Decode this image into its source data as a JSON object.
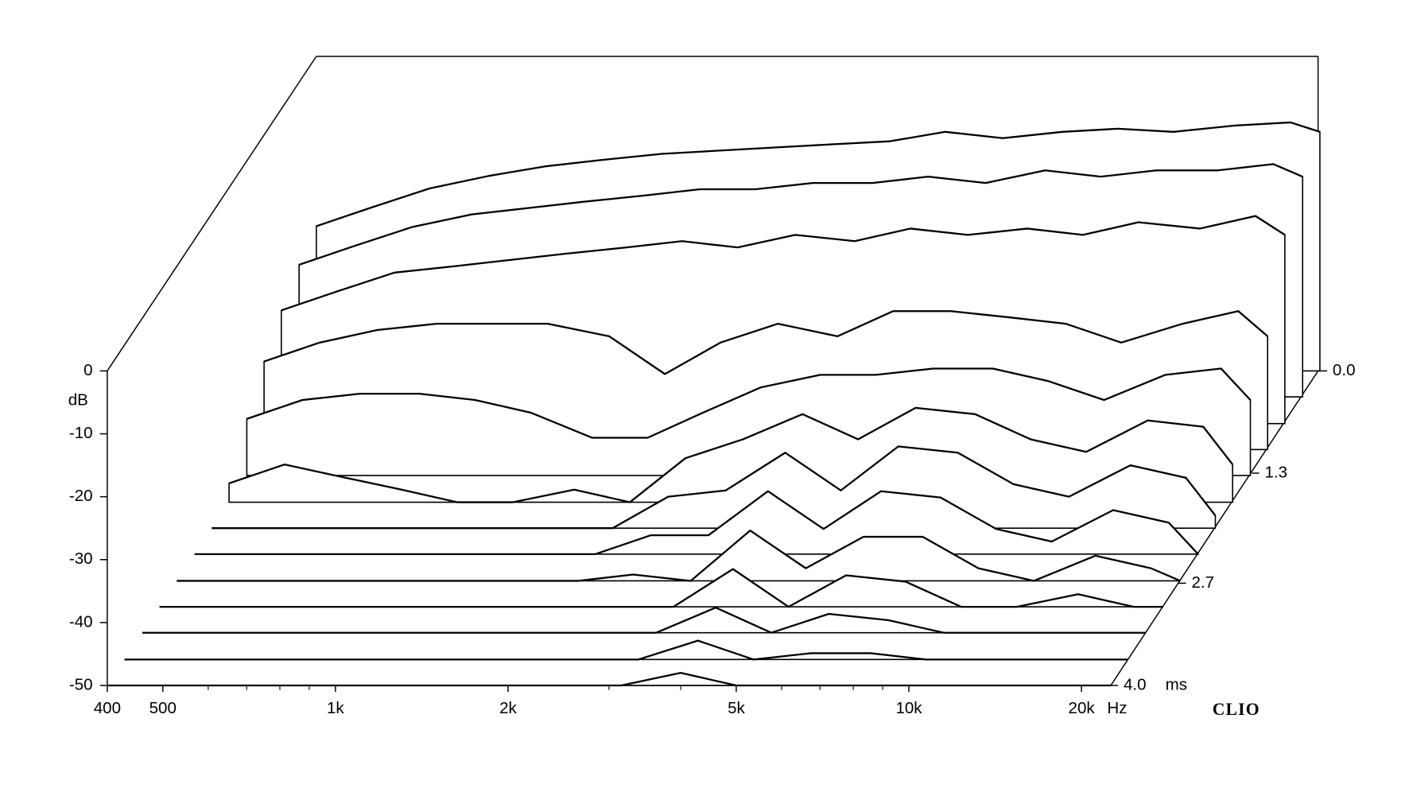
{
  "chart_data": {
    "type": "waterfall",
    "y_label": "dB",
    "x_unit": "Hz",
    "z_unit": "ms",
    "brand": "CLIO",
    "xlim": [
      400,
      22500
    ],
    "ylim": [
      -50,
      0
    ],
    "zlim": [
      0,
      4
    ],
    "log_x": true,
    "xticks": [
      400,
      500,
      {
        "value": 1000,
        "label": "1k"
      },
      {
        "value": 2000,
        "label": "2k"
      },
      {
        "value": 5000,
        "label": "5k"
      },
      {
        "value": 10000,
        "label": "10k"
      },
      {
        "value": 20000,
        "label": "20k"
      }
    ],
    "xminorticks": [
      600,
      700,
      800,
      900,
      3000,
      4000,
      6000,
      7000,
      8000,
      9000
    ],
    "yticks": [
      0,
      -10,
      -20,
      -30,
      -40,
      -50
    ],
    "zticks": [
      {
        "value": 0,
        "label": "0.0"
      },
      1.3,
      2.7,
      {
        "value": 4,
        "label": "4.0"
      }
    ],
    "color": "#000000",
    "x": [
      400,
      500,
      630,
      800,
      1000,
      1250,
      1600,
      2000,
      2500,
      3150,
      4000,
      5000,
      6300,
      8000,
      10000,
      12500,
      16000,
      20000,
      22500
    ],
    "z": [
      0,
      0.33,
      0.67,
      1.0,
      1.33,
      1.67,
      2.0,
      2.33,
      2.67,
      3.0,
      3.33,
      3.67,
      4.0
    ],
    "series": [
      {
        "values": [
          -27,
          -24,
          -21,
          -19,
          -17.5,
          -16.5,
          -15.5,
          -15,
          -14.5,
          -14,
          -13.5,
          -12,
          -13,
          -12,
          -11.5,
          -12,
          -11,
          -10.5,
          -12
        ]
      },
      {
        "values": [
          -29,
          -26,
          -23,
          -21,
          -20,
          -19,
          -18,
          -17,
          -17,
          -16,
          -16,
          -15,
          -16,
          -14,
          -15,
          -14,
          -14,
          -13,
          -15
        ]
      },
      {
        "values": [
          -32,
          -29,
          -26,
          -25,
          -24,
          -23,
          -22,
          -21,
          -22,
          -20,
          -21,
          -19,
          -20,
          -19,
          -20,
          -18,
          -19,
          -17,
          -20
        ]
      },
      {
        "values": [
          -36,
          -33,
          -31,
          -30,
          -30,
          -30,
          -32,
          -38,
          -33,
          -30,
          -32,
          -28,
          -28,
          -29,
          -30,
          -33,
          -30,
          -28,
          -32
        ]
      },
      {
        "values": [
          -41,
          -38,
          -37,
          -37,
          -38,
          -40,
          -44,
          -44,
          -40,
          -36,
          -34,
          -34,
          -33,
          -33,
          -35,
          -38,
          -34,
          -33,
          -38
        ]
      },
      {
        "values": [
          -47,
          -44,
          -46,
          -48,
          -50,
          -50,
          -48,
          -50,
          -43,
          -40,
          -36,
          -40,
          -35,
          -36,
          -40,
          -42,
          -37,
          -38,
          -44
        ]
      },
      {
        "values": [
          -50,
          -50,
          -50,
          -50,
          -50,
          -50,
          -50,
          -50,
          -45,
          -44,
          -38,
          -44,
          -37,
          -38,
          -43,
          -45,
          -40,
          -42,
          -48
        ]
      },
      {
        "values": [
          -50,
          -50,
          -50,
          -50,
          -50,
          -50,
          -50,
          -50,
          -47,
          -47,
          -40,
          -46,
          -40,
          -41,
          -46,
          -48,
          -43,
          -45,
          -50
        ]
      },
      {
        "values": [
          -50,
          -50,
          -50,
          -50,
          -50,
          -50,
          -50,
          -50,
          -49,
          -50,
          -42,
          -48,
          -43,
          -43,
          -48,
          -50,
          -46,
          -48,
          -50
        ]
      },
      {
        "values": [
          -50,
          -50,
          -50,
          -50,
          -50,
          -50,
          -50,
          -50,
          -50,
          -50,
          -44,
          -50,
          -45,
          -46,
          -50,
          -50,
          -48,
          -50,
          -50
        ]
      },
      {
        "values": [
          -50,
          -50,
          -50,
          -50,
          -50,
          -50,
          -50,
          -50,
          -50,
          -50,
          -46,
          -50,
          -47,
          -48,
          -50,
          -50,
          -50,
          -50,
          -50
        ]
      },
      {
        "values": [
          -50,
          -50,
          -50,
          -50,
          -50,
          -50,
          -50,
          -50,
          -50,
          -50,
          -47,
          -50,
          -49,
          -49,
          -50,
          -50,
          -50,
          -50,
          -50
        ]
      },
      {
        "values": [
          -50,
          -50,
          -50,
          -50,
          -50,
          -50,
          -50,
          -50,
          -50,
          -50,
          -48,
          -50,
          -50,
          -50,
          -50,
          -50,
          -50,
          -50,
          -50
        ]
      }
    ]
  }
}
